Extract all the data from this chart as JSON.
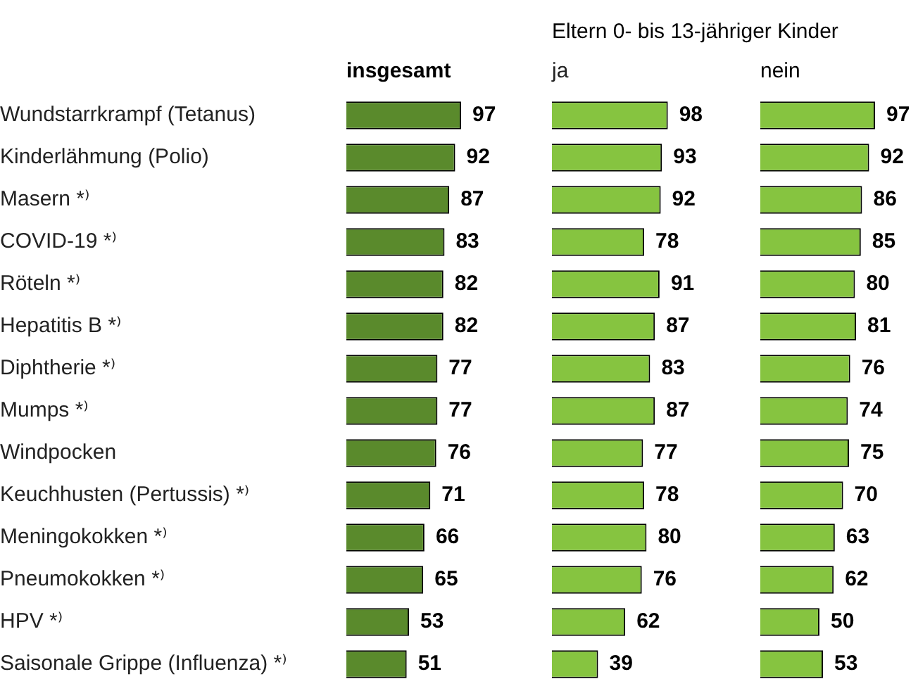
{
  "chart_data": [
    {
      "type": "bar",
      "orientation": "horizontal",
      "title": "insgesamt",
      "categories": [
        "Wundstarrkrampf (Tetanus)",
        "Kinderlähmung (Polio)",
        "Masern *⁾",
        "COVID-19 *⁾",
        "Röteln *⁾",
        "Hepatitis B *⁾",
        "Diphtherie *⁾",
        "Mumps *⁾",
        "Windpocken",
        "Keuchhusten (Pertussis) *⁾",
        "Meningokokken *⁾",
        "Pneumokokken *⁾",
        "HPV *⁾",
        "Saisonale Grippe (Influenza) *⁾"
      ],
      "values": [
        97,
        92,
        87,
        83,
        82,
        82,
        77,
        77,
        76,
        71,
        66,
        65,
        53,
        51
      ],
      "color": "#5a8a2c",
      "data_labels": true,
      "grid": false,
      "legend": false,
      "tick_labels": "y"
    },
    {
      "type": "bar",
      "orientation": "horizontal",
      "title": "Eltern 0- bis 13-jähriger Kinder",
      "subtitle": "ja",
      "categories": [
        null,
        null,
        null,
        null,
        null,
        null,
        null,
        null,
        null,
        null,
        null,
        null,
        null,
        null
      ],
      "values": [
        98,
        93,
        92,
        78,
        91,
        87,
        83,
        87,
        77,
        78,
        80,
        76,
        62,
        39
      ],
      "color": "#86c440",
      "data_labels": true,
      "grid": false,
      "legend": false,
      "tick_labels": false
    },
    {
      "type": "bar",
      "orientation": "horizontal",
      "title": "nein",
      "categories": [
        null,
        null,
        null,
        null,
        null,
        null,
        null,
        null,
        null,
        null,
        null,
        null,
        null,
        null
      ],
      "values": [
        97,
        92,
        86,
        85,
        80,
        81,
        76,
        74,
        75,
        70,
        63,
        62,
        50,
        53
      ],
      "color": "#86c440",
      "data_labels": true,
      "grid": false,
      "legend": false,
      "tick_labels": false
    }
  ]
}
